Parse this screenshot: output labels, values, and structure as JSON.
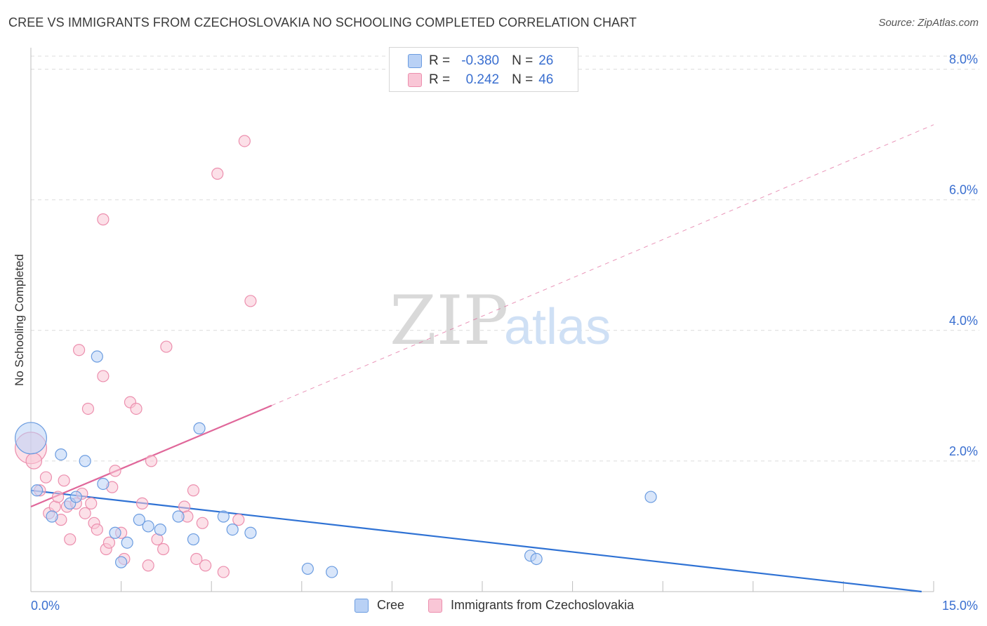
{
  "header": {
    "title": "CREE VS IMMIGRANTS FROM CZECHOSLOVAKIA NO SCHOOLING COMPLETED CORRELATION CHART",
    "source": "Source: ZipAtlas.com"
  },
  "legend": {
    "rows": [
      {
        "r_label": "R =",
        "r_value": "-0.380",
        "n_label": "N =",
        "n_value": "26"
      },
      {
        "r_label": "R =",
        "r_value": "0.242",
        "n_label": "N =",
        "n_value": "46"
      }
    ],
    "bottom": [
      "Cree",
      "Immigrants from Czechoslovakia"
    ]
  },
  "watermark": {
    "zip": "ZIP",
    "atlas": "atlas"
  },
  "colors": {
    "cree_fill": "#b9d1f5",
    "cree_stroke": "#6b9ce0",
    "cree_line": "#2f72d4",
    "czech_fill": "#f9c6d6",
    "czech_stroke": "#ec8fae",
    "czech_line": "#e0679a",
    "tick_label": "#3a6fd0",
    "grid": "#dcdcdc"
  },
  "chart_data": {
    "type": "scatter",
    "title": "CREE VS IMMIGRANTS FROM CZECHOSLOVAKIA NO SCHOOLING COMPLETED CORRELATION CHART",
    "ylabel": "No Schooling Completed",
    "xlabel": "",
    "xlim": [
      0,
      15
    ],
    "ylim": [
      0,
      8.2
    ],
    "x_tick_labels": [
      "0.0%",
      "15.0%"
    ],
    "y_ticks": [
      2,
      4,
      6,
      8
    ],
    "y_tick_labels": [
      "2.0%",
      "4.0%",
      "6.0%",
      "8.0%"
    ],
    "grid": "horizontal dashed",
    "series": [
      {
        "name": "Cree",
        "points": [
          [
            0.0,
            2.35,
            2.8
          ],
          [
            0.1,
            1.55,
            1
          ],
          [
            0.35,
            1.15,
            1
          ],
          [
            0.5,
            2.1,
            1
          ],
          [
            0.65,
            1.35,
            1
          ],
          [
            0.75,
            1.45,
            1
          ],
          [
            0.9,
            2.0,
            1
          ],
          [
            1.1,
            3.6,
            1
          ],
          [
            1.2,
            1.65,
            1
          ],
          [
            1.4,
            0.9,
            1
          ],
          [
            1.5,
            0.45,
            1
          ],
          [
            1.6,
            0.75,
            1
          ],
          [
            1.8,
            1.1,
            1
          ],
          [
            1.95,
            1.0,
            1
          ],
          [
            2.15,
            0.95,
            1
          ],
          [
            2.45,
            1.15,
            1
          ],
          [
            2.7,
            0.8,
            1
          ],
          [
            2.8,
            2.5,
            1
          ],
          [
            3.2,
            1.15,
            1
          ],
          [
            3.35,
            0.95,
            1
          ],
          [
            3.65,
            0.9,
            1
          ],
          [
            4.6,
            0.35,
            1
          ],
          [
            5.0,
            0.3,
            1
          ],
          [
            8.3,
            0.55,
            1
          ],
          [
            8.4,
            0.5,
            1
          ],
          [
            10.3,
            1.45,
            1
          ]
        ],
        "trend": {
          "x": [
            0.0,
            14.8
          ],
          "y": [
            1.55,
            0.0
          ]
        }
      },
      {
        "name": "Immigrants from Czechoslovakia",
        "points": [
          [
            0.0,
            2.2,
            2.8
          ],
          [
            0.05,
            2.0,
            1.4
          ],
          [
            0.15,
            1.55,
            1
          ],
          [
            0.25,
            1.75,
            1
          ],
          [
            0.3,
            1.2,
            1
          ],
          [
            0.4,
            1.3,
            1
          ],
          [
            0.45,
            1.45,
            1
          ],
          [
            0.5,
            1.1,
            1
          ],
          [
            0.55,
            1.7,
            1
          ],
          [
            0.6,
            1.3,
            1
          ],
          [
            0.65,
            0.8,
            1
          ],
          [
            0.75,
            1.35,
            1
          ],
          [
            0.8,
            3.7,
            1
          ],
          [
            0.85,
            1.5,
            1
          ],
          [
            0.9,
            1.2,
            1
          ],
          [
            0.95,
            2.8,
            1
          ],
          [
            1.0,
            1.35,
            1
          ],
          [
            1.05,
            1.05,
            1
          ],
          [
            1.1,
            0.95,
            1
          ],
          [
            1.2,
            5.7,
            1
          ],
          [
            1.2,
            3.3,
            1
          ],
          [
            1.25,
            0.65,
            1
          ],
          [
            1.3,
            0.75,
            1
          ],
          [
            1.35,
            1.6,
            1
          ],
          [
            1.4,
            1.85,
            1
          ],
          [
            1.5,
            0.9,
            1
          ],
          [
            1.55,
            0.5,
            1
          ],
          [
            1.65,
            2.9,
            1
          ],
          [
            1.75,
            2.8,
            1
          ],
          [
            1.85,
            1.35,
            1
          ],
          [
            1.95,
            0.4,
            1
          ],
          [
            2.0,
            2.0,
            1
          ],
          [
            2.1,
            0.8,
            1
          ],
          [
            2.2,
            0.65,
            1
          ],
          [
            2.25,
            3.75,
            1
          ],
          [
            2.55,
            1.3,
            1
          ],
          [
            2.6,
            1.15,
            1
          ],
          [
            2.7,
            1.55,
            1
          ],
          [
            2.85,
            1.05,
            1
          ],
          [
            2.9,
            0.4,
            1
          ],
          [
            3.1,
            6.4,
            1
          ],
          [
            3.2,
            0.3,
            1
          ],
          [
            3.45,
            1.1,
            1
          ],
          [
            3.55,
            6.9,
            1
          ],
          [
            3.65,
            4.45,
            1
          ],
          [
            2.75,
            0.5,
            1
          ]
        ],
        "trend": {
          "x": [
            0.0,
            4.0
          ],
          "y": [
            1.3,
            2.85
          ]
        },
        "trend_extension": {
          "x": [
            4.0,
            15.0
          ],
          "y": [
            2.85,
            7.15
          ]
        }
      }
    ]
  }
}
